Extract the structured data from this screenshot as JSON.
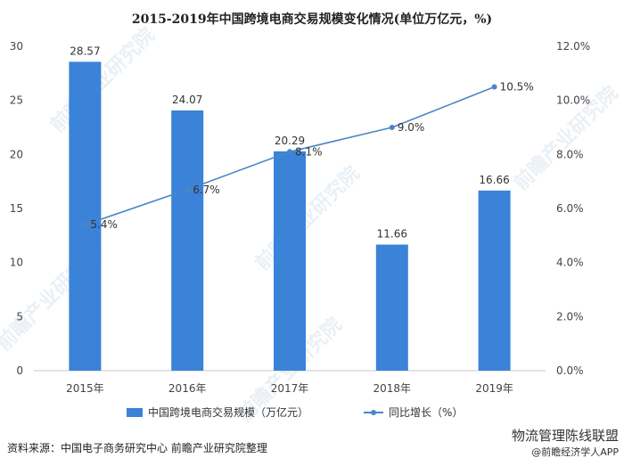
{
  "chart_data": {
    "type": "bar",
    "title": "2015-2019年中国跨境电商交易规模变化情况(单位万亿元，%)",
    "categories": [
      "2015年",
      "2016年",
      "2017年",
      "2018年",
      "2019年"
    ],
    "series": [
      {
        "name": "中国跨境电商交易规模（万亿元）",
        "type": "bar",
        "axis": "left",
        "values": [
          28.57,
          24.07,
          20.29,
          11.66,
          16.66
        ],
        "labels": [
          "28.57",
          "24.07",
          "20.29",
          "11.66",
          "16.66"
        ]
      },
      {
        "name": "同比增长（%）",
        "type": "line",
        "axis": "right",
        "values": [
          5.4,
          6.7,
          8.1,
          9.0,
          10.5
        ],
        "labels": [
          "5.4%",
          "6.7%",
          "8.1%",
          "9.0%",
          "10.5%"
        ]
      }
    ],
    "y_left": {
      "min": 0,
      "max": 30,
      "ticks": [
        "0",
        "5",
        "10",
        "15",
        "20",
        "25",
        "30"
      ]
    },
    "y_right": {
      "min": 0,
      "max": 12,
      "ticks": [
        "0.0%",
        "2.0%",
        "4.0%",
        "6.0%",
        "8.0%",
        "10.0%",
        "12.0%"
      ]
    },
    "legend_position": "bottom",
    "grid": false,
    "colors": {
      "bar": "#3b82d9",
      "line": "#4a86c5"
    }
  },
  "watermark": "前瞻产业研究院",
  "footer": {
    "source": "资料来源：中国电子商务研究中心 前瞻产业研究院整理",
    "credit_main": "物流管理陈线联盟",
    "credit_sub": "@前瞻经济学人APP"
  }
}
